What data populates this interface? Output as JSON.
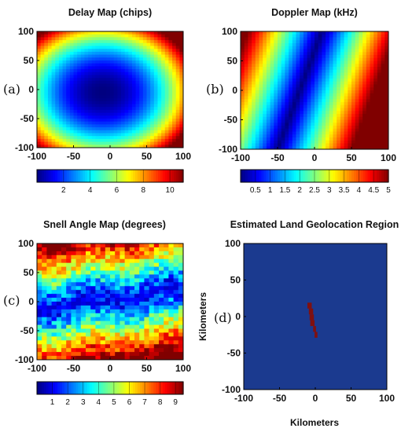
{
  "figure": {
    "panel_labels": [
      "(a)",
      "(b)",
      "(c)",
      "(d)"
    ]
  },
  "chart_data": [
    {
      "id": "delay",
      "type": "heatmap",
      "title": "Delay Map (chips)",
      "xlabel": "",
      "ylabel": "",
      "xlim": [
        -100,
        100
      ],
      "ylim": [
        -100,
        100
      ],
      "xticks": [
        -100,
        -50,
        0,
        50,
        100
      ],
      "yticks": [
        100,
        50,
        0,
        -50,
        -100
      ],
      "colormap": "jet",
      "clim": [
        0,
        11
      ],
      "colorbar_ticks": [
        2,
        4,
        6,
        8,
        10
      ],
      "field": "radial",
      "center": [
        -10,
        -5
      ],
      "radial_max": 11,
      "radial_norm": 130,
      "grid": false
    },
    {
      "id": "doppler",
      "type": "heatmap",
      "title": "Doppler Map (kHz)",
      "xlabel": "",
      "ylabel": "",
      "xlim": [
        -100,
        100
      ],
      "ylim": [
        -100,
        100
      ],
      "xticks": [
        -100,
        -50,
        0,
        50,
        100
      ],
      "yticks": [
        100,
        50,
        0,
        -50,
        -100
      ],
      "colormap": "jet",
      "clim": [
        0,
        5
      ],
      "colorbar_ticks": [
        0.5,
        1,
        1.5,
        2,
        2.5,
        3,
        3.5,
        4,
        4.5,
        5
      ],
      "field": "band",
      "band_slope": 0.3,
      "band_offset": -20,
      "band_scale": 0.05,
      "grid": false
    },
    {
      "id": "snell",
      "type": "heatmap",
      "title": "Snell Angle Map (degrees)",
      "xlabel": "",
      "ylabel": "",
      "xlim": [
        -100,
        100
      ],
      "ylim": [
        -100,
        100
      ],
      "xticks": [
        -100,
        -50,
        0,
        50,
        100
      ],
      "yticks": [
        100,
        50,
        0,
        -50,
        -100
      ],
      "colormap": "jet",
      "clim": [
        0,
        9.5
      ],
      "colorbar_ticks": [
        1,
        2,
        3,
        4,
        5,
        6,
        7,
        8,
        9
      ],
      "field": "noisy_band",
      "band_slope": 0.15,
      "band_offset": 5,
      "band_scale": 0.085,
      "grid": false
    },
    {
      "id": "geolocation",
      "type": "heatmap",
      "title": "Estimated Land Geolocation Region",
      "xlabel": "Kilometers",
      "ylabel": "Kilometers",
      "xlim": [
        -100,
        100
      ],
      "ylim": [
        -100,
        100
      ],
      "xticks": [
        -100,
        -50,
        0,
        50,
        100
      ],
      "yticks": [
        100,
        50,
        0,
        -50,
        -100
      ],
      "background_color": "#1b3a8f",
      "region_color": "#7f1010",
      "region_cells": [
        [
          -8,
          15,
          6,
          8
        ],
        [
          -6,
          7,
          6,
          8
        ],
        [
          -5,
          -1,
          6,
          8
        ],
        [
          -4,
          -9,
          6,
          8
        ],
        [
          -1,
          -17,
          4,
          8
        ],
        [
          1,
          -25,
          4,
          8
        ]
      ],
      "grid": false
    }
  ]
}
